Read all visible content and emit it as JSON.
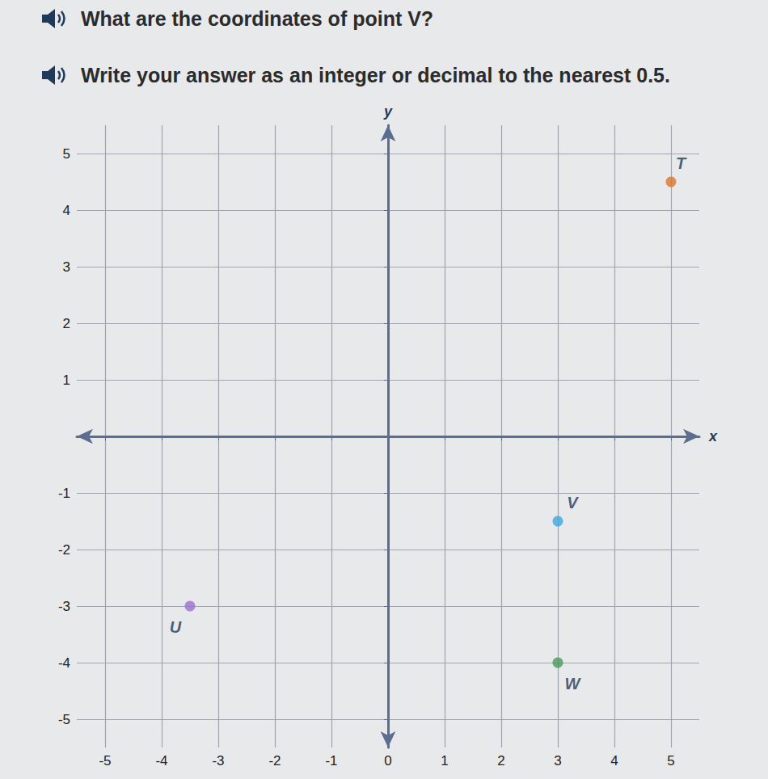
{
  "question": "What are the coordinates of point V?",
  "instruction": "Write your answer as an integer or decimal to the nearest 0.5.",
  "chart_data": {
    "type": "scatter",
    "xlabel": "x",
    "ylabel": "y",
    "xlim": [
      -5.5,
      5.5
    ],
    "ylim": [
      -5.5,
      5.5
    ],
    "xticks": [
      -5,
      -4,
      -3,
      -2,
      -1,
      0,
      1,
      2,
      3,
      4,
      5
    ],
    "yticks": [
      -5,
      -4,
      -3,
      -2,
      -1,
      1,
      2,
      3,
      4,
      5
    ],
    "grid": true,
    "series": [
      {
        "name": "T",
        "color": "#d9772b",
        "x": [
          5
        ],
        "y": [
          4.5
        ]
      },
      {
        "name": "U",
        "color": "#9b6fd1",
        "x": [
          -3.5
        ],
        "y": [
          -3
        ]
      },
      {
        "name": "V",
        "color": "#3fa6dc",
        "x": [
          3
        ],
        "y": [
          -1.5
        ]
      },
      {
        "name": "W",
        "color": "#4a9a5a",
        "x": [
          3
        ],
        "y": [
          -4
        ]
      }
    ]
  }
}
